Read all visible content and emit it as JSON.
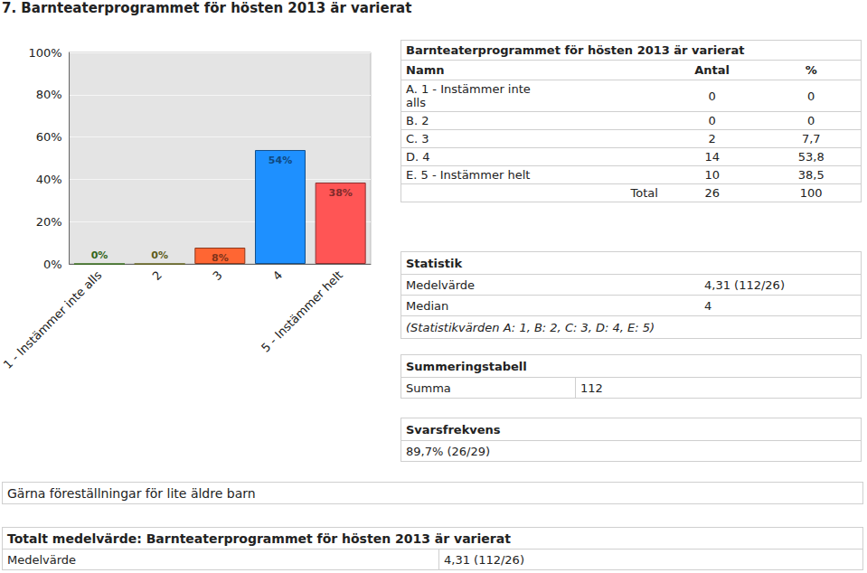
{
  "heading": "7. Barnteaterprogrammet för hösten 2013 är varierat",
  "chart_data": {
    "type": "bar",
    "categories": [
      "1 - Instämmer inte alls",
      "2",
      "3",
      "4",
      "5 - Instämmer helt"
    ],
    "values": [
      0,
      0,
      7.69,
      53.85,
      38.46
    ],
    "value_labels": [
      "0%",
      "0%",
      "8%",
      "54%",
      "38%"
    ],
    "colors": [
      "#66cc33",
      "#b8b833",
      "#ff6633",
      "#1e90ff",
      "#ff5555"
    ],
    "ylim": [
      0,
      100
    ],
    "yticks": [
      {
        "value": 0,
        "label": "0%"
      },
      {
        "value": 20,
        "label": "20%"
      },
      {
        "value": 40,
        "label": "40%"
      },
      {
        "value": 60,
        "label": "60%"
      },
      {
        "value": 80,
        "label": "80%"
      },
      {
        "value": 100,
        "label": "100%"
      }
    ],
    "grid": true,
    "data_labels": true
  },
  "table": {
    "title": "Barnteaterprogrammet för hösten 2013 är varierat",
    "header": [
      "Namn",
      "Antal",
      "%"
    ],
    "rows": [
      [
        "A. 1 - Instämmer inte alls",
        "0",
        "0"
      ],
      [
        "B. 2",
        "0",
        "0"
      ],
      [
        "C. 3",
        "2",
        "7,7"
      ],
      [
        "D. 4",
        "14",
        "53,8"
      ],
      [
        "E. 5 - Instämmer helt",
        "10",
        "38,5"
      ]
    ],
    "total": [
      "Total",
      "26",
      "100"
    ]
  },
  "statistics": {
    "title": "Statistik",
    "rows": [
      [
        "Medelvärde",
        "4,31 (112/26)"
      ],
      [
        "Median",
        "4"
      ]
    ],
    "note": "(Statistikvärden A: 1, B: 2, C: 3, D: 4, E: 5)"
  },
  "summary": {
    "title": "Summeringstabell",
    "rows": [
      [
        "Summa",
        "112"
      ]
    ]
  },
  "response_rate": {
    "title": "Svarsfrekvens",
    "text": "89,7% (26/29)"
  },
  "comment": "Gärna föreställningar för lite äldre barn",
  "total_mean": {
    "title": "Totalt medelvärde: Barnteaterprogrammet för hösten 2013 är varierat",
    "rows": [
      [
        "Medelvärde",
        "4,31 (112/26)"
      ]
    ]
  }
}
